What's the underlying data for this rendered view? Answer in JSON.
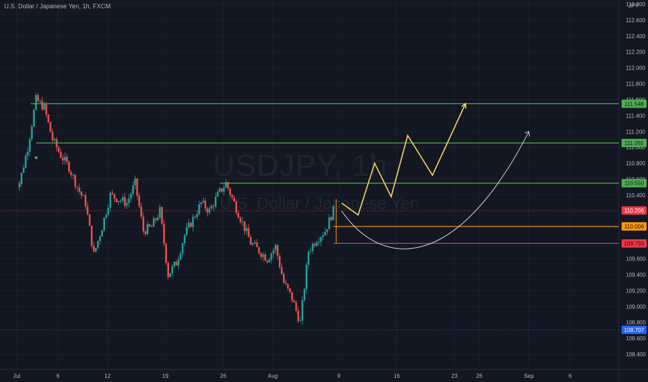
{
  "header": {
    "title": "U.S. Dollar / Japanese Yen, 1h, FXCM",
    "currency": "JPY"
  },
  "watermark": {
    "symbol": "USDJPY, 1h",
    "name": "U.S. Dollar / Japanese Yen"
  },
  "colors": {
    "background": "#131722",
    "grid": "#1c2030",
    "axis_text": "#b2b5be",
    "candle_up": "#26a69a",
    "candle_down": "#ef5350",
    "resistance": "#4caf50",
    "support_orange": "#ff9800",
    "support_red": "#f23645",
    "projection_yellow": "#f5d56b",
    "projection_white": "#d1d4dc",
    "last_price_line": "#f23645",
    "low_line": "#2962ff"
  },
  "chart_data": {
    "type": "candlestick",
    "title": "U.S. Dollar / Japanese Yen, 1h, FXCM",
    "x_axis": {
      "tick_labels": [
        "Jul",
        "6",
        "12",
        "19",
        "26",
        "Aug",
        "9",
        "16",
        "23",
        "26",
        "Sep",
        "6"
      ]
    },
    "y_axis": {
      "range": [
        108.3,
        112.9
      ],
      "unit": "JPY",
      "tick_labels": [
        "108.400",
        "108.600",
        "108.800",
        "109.000",
        "109.200",
        "109.400",
        "109.600",
        "109.800",
        "110.000",
        "110.200",
        "110.400",
        "110.600",
        "110.800",
        "111.000",
        "111.200",
        "111.400",
        "111.600",
        "111.800",
        "112.000",
        "112.200",
        "112.400",
        "112.600",
        "112.800"
      ]
    },
    "series": [
      {
        "name": "USDJPY",
        "points": [
          {
            "date": "Jul 1",
            "close": 110.55
          },
          {
            "date": "Jul 2",
            "close": 111.0
          },
          {
            "date": "Jul 3",
            "close": 111.6
          },
          {
            "date": "Jul 4",
            "close": 111.5
          },
          {
            "date": "Jul 5",
            "close": 111.1
          },
          {
            "date": "Jul 6",
            "close": 110.9
          },
          {
            "date": "Jul 7",
            "close": 110.75
          },
          {
            "date": "Jul 8",
            "close": 110.5
          },
          {
            "date": "Jul 9",
            "close": 110.3
          },
          {
            "date": "Jul 10",
            "close": 109.65
          },
          {
            "date": "Jul 11",
            "close": 110.0
          },
          {
            "date": "Jul 12",
            "close": 110.4
          },
          {
            "date": "Jul 14",
            "close": 110.3
          },
          {
            "date": "Jul 15",
            "close": 110.55
          },
          {
            "date": "Jul 16",
            "close": 109.95
          },
          {
            "date": "Jul 17",
            "close": 110.0
          },
          {
            "date": "Jul 18",
            "close": 110.2
          },
          {
            "date": "Jul 19",
            "close": 109.4
          },
          {
            "date": "Jul 20",
            "close": 109.55
          },
          {
            "date": "Jul 21",
            "close": 109.9
          },
          {
            "date": "Jul 22",
            "close": 110.1
          },
          {
            "date": "Jul 23",
            "close": 110.3
          },
          {
            "date": "Jul 24",
            "close": 110.2
          },
          {
            "date": "Jul 25",
            "close": 110.4
          },
          {
            "date": "Jul 26",
            "close": 110.55
          },
          {
            "date": "Jul 27",
            "close": 110.3
          },
          {
            "date": "Jul 28",
            "close": 110.05
          },
          {
            "date": "Jul 29",
            "close": 109.8
          },
          {
            "date": "Jul 30",
            "close": 109.7
          },
          {
            "date": "Jul 31",
            "close": 109.6
          },
          {
            "date": "Aug 1",
            "close": 109.75
          },
          {
            "date": "Aug 2",
            "close": 109.3
          },
          {
            "date": "Aug 3",
            "close": 109.1
          },
          {
            "date": "Aug 4",
            "close": 108.8
          },
          {
            "date": "Aug 5",
            "close": 109.7
          },
          {
            "date": "Aug 6",
            "close": 109.85
          },
          {
            "date": "Aug 7",
            "close": 109.95
          },
          {
            "date": "Aug 8",
            "close": 110.206
          }
        ]
      }
    ],
    "horizontal_levels": [
      {
        "price": 111.548,
        "label": "111.548",
        "color": "#4caf50"
      },
      {
        "price": 111.055,
        "label": "111.055",
        "color": "#4caf50"
      },
      {
        "price": 110.55,
        "label": "110.550",
        "color": "#4caf50"
      },
      {
        "price": 110.006,
        "label": "110.006",
        "color": "#ff9800"
      },
      {
        "price": 109.793,
        "label": "109.793",
        "color": "#f23645"
      }
    ],
    "price_markers": [
      {
        "price": 110.206,
        "label": "110.206",
        "color": "#f23645",
        "style": "dotted"
      },
      {
        "price": 108.707,
        "label": "108.707",
        "color": "#2962ff",
        "style": "dotted"
      }
    ],
    "projections": [
      {
        "name": "",
        "color": "#f5d56b",
        "points": [
          {
            "date": "Aug 9",
            "price": 110.3
          },
          {
            "date": "Aug 11",
            "price": 110.15
          },
          {
            "date": "Aug 13",
            "price": 110.8
          },
          {
            "date": "Aug 15",
            "price": 110.38
          },
          {
            "date": "Aug 17",
            "price": 111.15
          },
          {
            "date": "Aug 20",
            "price": 110.65
          },
          {
            "date": "Aug 24",
            "price": 111.55
          }
        ]
      },
      {
        "name": "",
        "color": "#d1d4dc",
        "points": [
          {
            "date": "Aug 9",
            "price": 110.2
          },
          {
            "date": "Aug 18",
            "price": 109.8
          },
          {
            "date": "Sep 1",
            "price": 111.25
          }
        ]
      }
    ]
  }
}
